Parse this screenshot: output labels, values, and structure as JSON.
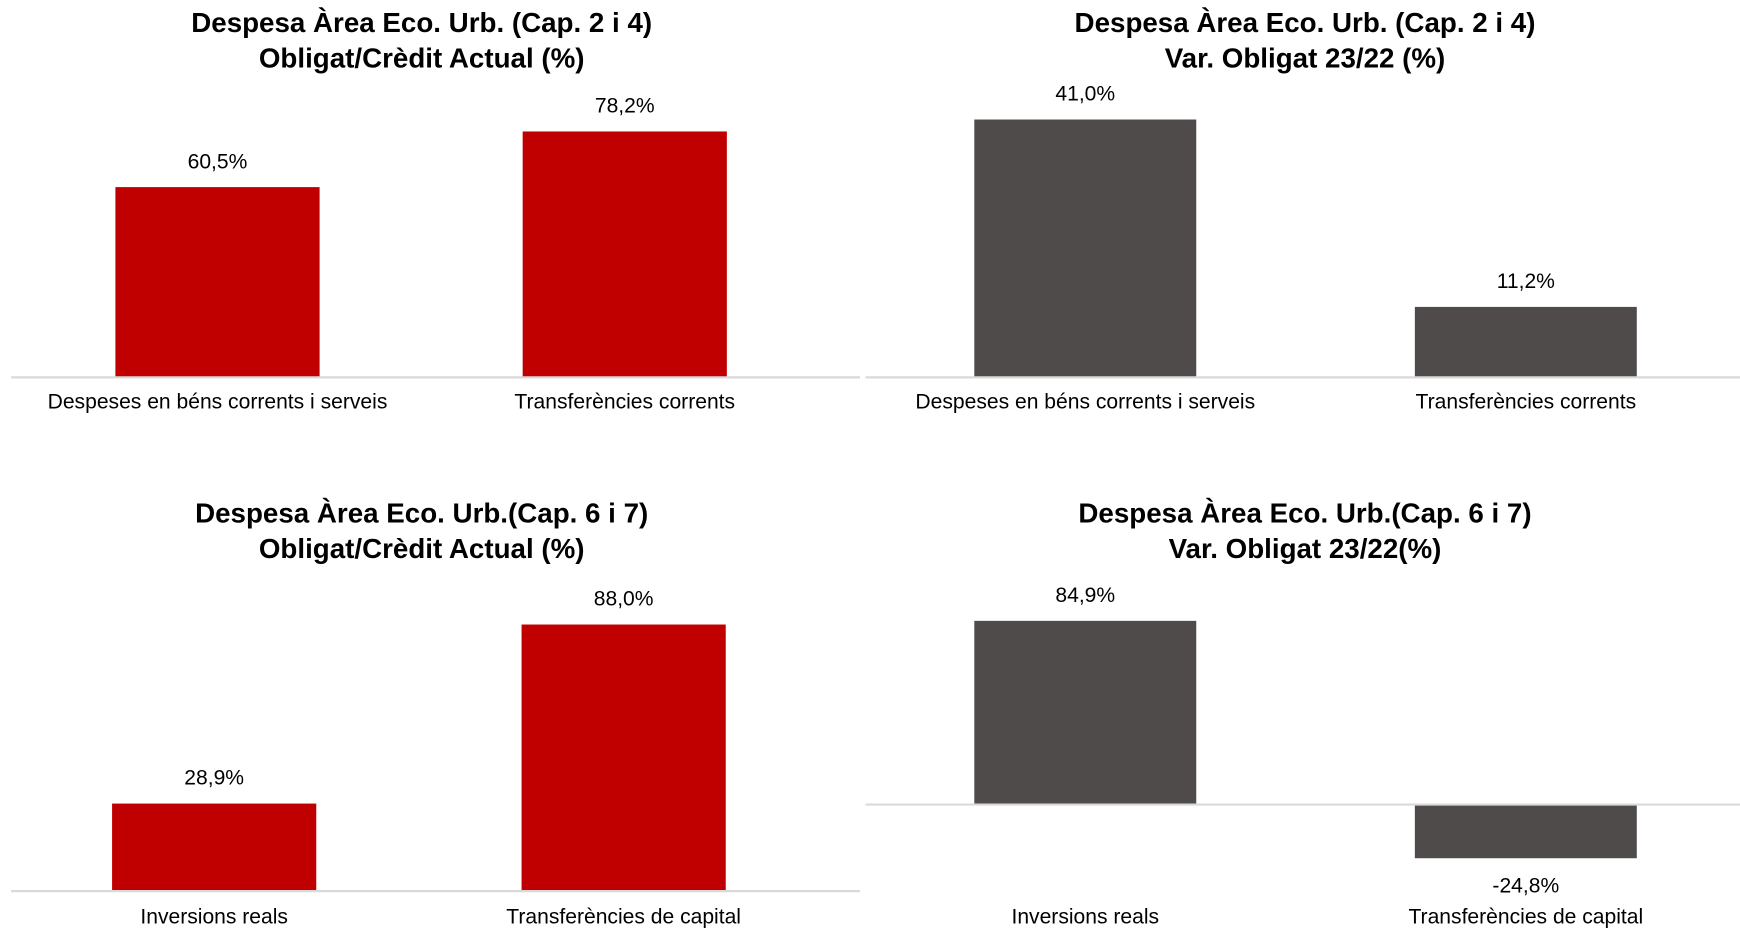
{
  "chart_data": [
    {
      "type": "bar",
      "title": [
        "Despesa Àrea Eco. Urb. (Cap. 2 i 4)",
        "Obligat/Crèdit Actual (%)"
      ],
      "categories": [
        "Despeses en béns corrents i serveis",
        "Transferències corrents"
      ],
      "values": [
        60.5,
        78.2
      ],
      "value_labels": [
        "60,5%",
        "78,2%"
      ],
      "color": "#c00000",
      "ylim": [
        0,
        90
      ]
    },
    {
      "type": "bar",
      "title": [
        "Despesa Àrea Eco. Urb. (Cap. 2 i 4)",
        "Var. Obligat 23/22 (%)"
      ],
      "categories": [
        "Despeses en béns corrents i serveis",
        "Transferències corrents"
      ],
      "values": [
        41.0,
        11.2
      ],
      "value_labels": [
        "41,0%",
        "11,2%"
      ],
      "color": "#4f4b4b",
      "ylim": [
        0,
        45
      ]
    },
    {
      "type": "bar",
      "title": [
        "Despesa Àrea Eco. Urb.(Cap. 6 i 7)",
        "Obligat/Crèdit Actual (%)"
      ],
      "categories": [
        "Inversions reals",
        "Transferències de capital"
      ],
      "values": [
        28.9,
        88.0
      ],
      "value_labels": [
        "28,9%",
        "88,0%"
      ],
      "color": "#c00000",
      "ylim": [
        0,
        100
      ]
    },
    {
      "type": "bar",
      "title": [
        "Despesa Àrea Eco. Urb.(Cap. 6 i 7)",
        "Var. Obligat 23/22(%)"
      ],
      "categories": [
        "Inversions reals",
        "Transferències de capital"
      ],
      "values": [
        84.9,
        -24.8
      ],
      "value_labels": [
        "84,9%",
        "-24,8%"
      ],
      "color": "#4f4b4b",
      "ylim": [
        -40,
        100
      ]
    }
  ]
}
